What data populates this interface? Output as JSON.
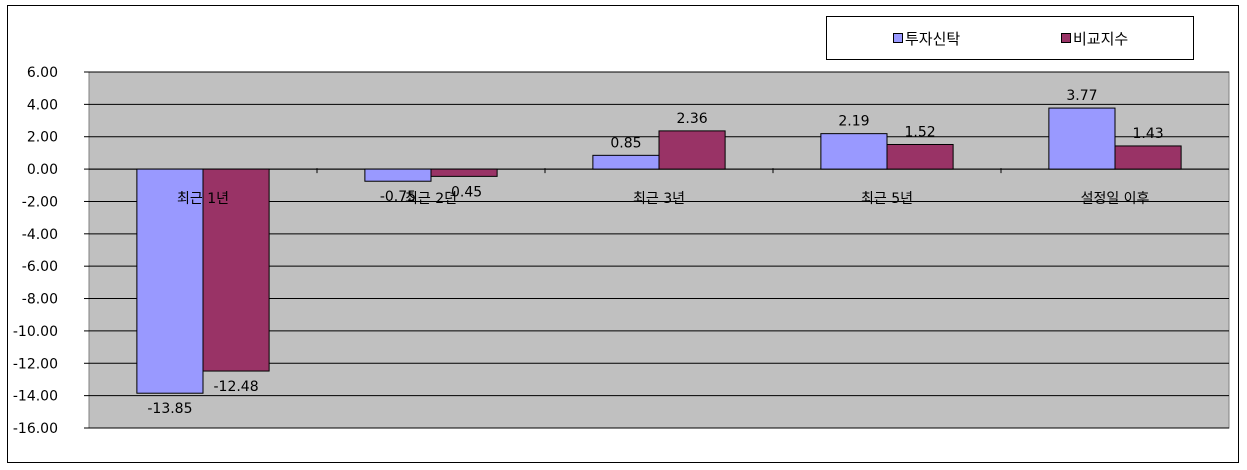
{
  "chart_data": {
    "type": "bar",
    "categories": [
      "최근 1년",
      "최근 2년",
      "최근 3년",
      "최근 5년",
      "설정일 이후"
    ],
    "series": [
      {
        "name": "투자신탁",
        "values": [
          -13.85,
          -0.75,
          0.85,
          2.19,
          3.77
        ],
        "labels": [
          "-13.85",
          "-0.75",
          "0.85",
          "2.19",
          "3.77"
        ],
        "color": "#9999ff"
      },
      {
        "name": "비교지수",
        "values": [
          -12.48,
          -0.45,
          2.36,
          1.52,
          1.43
        ],
        "labels": [
          "-12.48",
          "-0.45",
          "2.36",
          "1.52",
          "1.43"
        ],
        "color": "#993366"
      }
    ],
    "ylim": [
      -16,
      6
    ],
    "yticks": [
      6,
      4,
      2,
      0,
      -2,
      -4,
      -6,
      -8,
      -10,
      -12,
      -14,
      -16
    ],
    "ytick_labels": [
      "6.00",
      "4.00",
      "2.00",
      "0.00",
      "-2.00",
      "-4.00",
      "-6.00",
      "-8.00",
      "-10.00",
      "-12.00",
      "-14.00",
      "-16.00"
    ],
    "grid": true,
    "plot_background": "#c0c0c0",
    "legend_position": "top-right"
  }
}
